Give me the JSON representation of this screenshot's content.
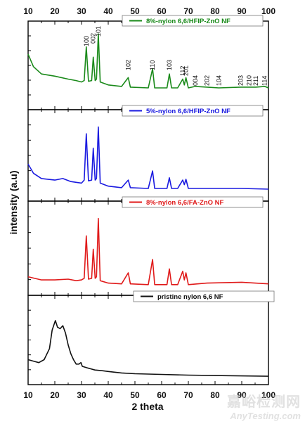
{
  "chart_data": {
    "type": "line",
    "xlabel": "2 theta",
    "ylabel": "intensity (a.u)",
    "xlim": [
      10,
      100
    ],
    "xticks": [
      "10",
      "20",
      "30",
      "40",
      "50",
      "60",
      "70",
      "80",
      "90",
      "100"
    ],
    "panels": [
      {
        "series_name": "8%-nylon 6,6/HFIP-ZnO NF",
        "color": "#1a8a1a",
        "peak_labels": [
          {
            "label": "100",
            "x": 31.8
          },
          {
            "label": "002",
            "x": 34.4
          },
          {
            "label": "101",
            "x": 36.3
          },
          {
            "label": "102",
            "x": 47.5
          },
          {
            "label": "110",
            "x": 56.6
          },
          {
            "label": "103",
            "x": 62.9
          },
          {
            "label": "112",
            "x": 67.9
          },
          {
            "label": "201",
            "x": 69.1
          },
          {
            "label": "004",
            "x": 72.6
          },
          {
            "label": "202",
            "x": 77.0
          },
          {
            "label": "104",
            "x": 81.4
          },
          {
            "label": "203",
            "x": 89.6
          },
          {
            "label": "210",
            "x": 92.8
          },
          {
            "label": "211",
            "x": 95.3
          },
          {
            "label": "114",
            "x": 98.6
          }
        ],
        "baseline": 0.25,
        "points": [
          [
            10,
            0.72
          ],
          [
            12,
            0.55
          ],
          [
            15,
            0.45
          ],
          [
            20,
            0.42
          ],
          [
            25,
            0.38
          ],
          [
            28,
            0.36
          ],
          [
            30,
            0.34
          ],
          [
            31,
            0.36
          ],
          [
            31.8,
            0.82
          ],
          [
            32.6,
            0.35
          ],
          [
            33.8,
            0.36
          ],
          [
            34.4,
            0.68
          ],
          [
            35.1,
            0.36
          ],
          [
            35.6,
            0.38
          ],
          [
            36.3,
            1.0
          ],
          [
            37.0,
            0.34
          ],
          [
            40,
            0.3
          ],
          [
            45,
            0.28
          ],
          [
            47.5,
            0.4
          ],
          [
            48.3,
            0.27
          ],
          [
            55,
            0.26
          ],
          [
            56.6,
            0.52
          ],
          [
            57.4,
            0.26
          ],
          [
            62,
            0.26
          ],
          [
            62.9,
            0.45
          ],
          [
            63.7,
            0.26
          ],
          [
            66,
            0.26
          ],
          [
            67.9,
            0.38
          ],
          [
            68.5,
            0.3
          ],
          [
            69.1,
            0.4
          ],
          [
            70,
            0.26
          ],
          [
            72.6,
            0.28
          ],
          [
            77,
            0.27
          ],
          [
            81.4,
            0.26
          ],
          [
            89.6,
            0.27
          ],
          [
            92.8,
            0.27
          ],
          [
            95.3,
            0.27
          ],
          [
            98.6,
            0.28
          ],
          [
            100,
            0.26
          ]
        ]
      },
      {
        "series_name": "5%-nylon 6,6/HFIP-ZnO NF",
        "color": "#1a1ae0",
        "peak_labels": [],
        "baseline": 0.12,
        "points": [
          [
            10,
            0.45
          ],
          [
            12,
            0.33
          ],
          [
            15,
            0.26
          ],
          [
            20,
            0.24
          ],
          [
            23,
            0.26
          ],
          [
            26,
            0.22
          ],
          [
            30,
            0.2
          ],
          [
            31,
            0.24
          ],
          [
            31.8,
            0.85
          ],
          [
            32.6,
            0.23
          ],
          [
            33.8,
            0.24
          ],
          [
            34.4,
            0.66
          ],
          [
            35.1,
            0.24
          ],
          [
            35.6,
            0.26
          ],
          [
            36.3,
            0.94
          ],
          [
            37.0,
            0.2
          ],
          [
            40,
            0.16
          ],
          [
            45,
            0.14
          ],
          [
            47.5,
            0.24
          ],
          [
            48.3,
            0.14
          ],
          [
            55,
            0.13
          ],
          [
            56.6,
            0.36
          ],
          [
            57.4,
            0.13
          ],
          [
            62,
            0.13
          ],
          [
            62.9,
            0.27
          ],
          [
            63.7,
            0.13
          ],
          [
            66,
            0.13
          ],
          [
            67.9,
            0.24
          ],
          [
            68.5,
            0.18
          ],
          [
            69.1,
            0.25
          ],
          [
            70,
            0.13
          ],
          [
            77,
            0.13
          ],
          [
            90,
            0.13
          ],
          [
            100,
            0.12
          ]
        ]
      },
      {
        "series_name": "8%-nylon 6,6/FA-ZnO NF",
        "color": "#e01a1a",
        "peak_labels": [],
        "baseline": 0.1,
        "points": [
          [
            10,
            0.2
          ],
          [
            15,
            0.16
          ],
          [
            20,
            0.16
          ],
          [
            25,
            0.17
          ],
          [
            28,
            0.15
          ],
          [
            30,
            0.16
          ],
          [
            31,
            0.18
          ],
          [
            31.8,
            0.72
          ],
          [
            32.6,
            0.17
          ],
          [
            33.8,
            0.18
          ],
          [
            34.4,
            0.55
          ],
          [
            35.1,
            0.18
          ],
          [
            35.6,
            0.2
          ],
          [
            36.3,
            0.94
          ],
          [
            37.0,
            0.15
          ],
          [
            40,
            0.12
          ],
          [
            45,
            0.11
          ],
          [
            47.5,
            0.25
          ],
          [
            48.3,
            0.11
          ],
          [
            55,
            0.1
          ],
          [
            56.6,
            0.42
          ],
          [
            57.4,
            0.1
          ],
          [
            62,
            0.1
          ],
          [
            62.9,
            0.3
          ],
          [
            63.7,
            0.1
          ],
          [
            66,
            0.1
          ],
          [
            67.9,
            0.27
          ],
          [
            68.5,
            0.16
          ],
          [
            69.1,
            0.25
          ],
          [
            70,
            0.1
          ],
          [
            77,
            0.12
          ],
          [
            90,
            0.13
          ],
          [
            95,
            0.12
          ],
          [
            100,
            0.11
          ]
        ]
      },
      {
        "series_name": "pristine nylon 6,6 NF",
        "color": "#111111",
        "peak_labels": [],
        "baseline": 0.08,
        "points": [
          [
            10,
            0.3
          ],
          [
            12,
            0.28
          ],
          [
            14,
            0.26
          ],
          [
            16,
            0.3
          ],
          [
            18,
            0.45
          ],
          [
            19,
            0.7
          ],
          [
            20.2,
            0.83
          ],
          [
            21,
            0.74
          ],
          [
            22,
            0.72
          ],
          [
            23,
            0.76
          ],
          [
            24,
            0.66
          ],
          [
            25,
            0.5
          ],
          [
            26,
            0.38
          ],
          [
            27,
            0.3
          ],
          [
            28,
            0.24
          ],
          [
            29,
            0.24
          ],
          [
            29.8,
            0.26
          ],
          [
            30.3,
            0.21
          ],
          [
            32,
            0.19
          ],
          [
            35,
            0.16
          ],
          [
            38,
            0.15
          ],
          [
            40,
            0.14
          ],
          [
            45,
            0.12
          ],
          [
            50,
            0.11
          ],
          [
            60,
            0.1
          ],
          [
            70,
            0.09
          ],
          [
            80,
            0.085
          ],
          [
            90,
            0.08
          ],
          [
            100,
            0.075
          ]
        ]
      }
    ]
  },
  "watermark": {
    "chinese": "嘉峪检测网",
    "english": "AnyTesting.com"
  }
}
